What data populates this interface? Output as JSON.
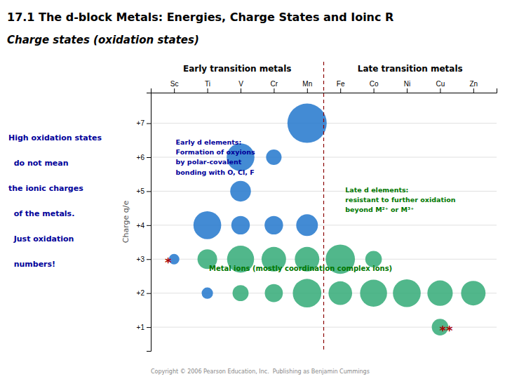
{
  "chart_data": {
    "type": "scatter",
    "title": "17.1 The d-block Metals: Energies, Charge States and Ioinc R",
    "subtitle": [
      "Charge states",
      " (oxidation states)"
    ],
    "ylabel": "Charge q/e",
    "x": [
      5,
      3,
      4,
      3,
      2,
      3,
      4,
      5,
      1,
      2,
      3,
      4,
      5,
      6,
      7,
      2,
      3,
      4,
      5,
      6,
      7,
      8,
      9,
      10,
      9
    ],
    "values": [
      7,
      6,
      6,
      5,
      4,
      4,
      4,
      4,
      3,
      3,
      3,
      3,
      3,
      3,
      3,
      2,
      2,
      2,
      2,
      2,
      2,
      2,
      2,
      2,
      1
    ],
    "sizes": [
      1800,
      900,
      280,
      500,
      900,
      400,
      400,
      550,
      130,
      450,
      850,
      700,
      700,
      1000,
      320,
      150,
      300,
      380,
      950,
      650,
      850,
      900,
      750,
      700,
      320
    ],
    "colors": [
      "#2277cc",
      "#2277cc",
      "#2277cc",
      "#2277cc",
      "#2277cc",
      "#2277cc",
      "#2277cc",
      "#2277cc",
      "#2277cc",
      "#33aa77",
      "#33aa77",
      "#33aa77",
      "#33aa77",
      "#33aa77",
      "#33aa77",
      "#2277cc",
      "#33aa77",
      "#33aa77",
      "#33aa77",
      "#33aa77",
      "#33aa77",
      "#33aa77",
      "#33aa77",
      "#33aa77",
      "#33aa77"
    ],
    "xlim": [
      0.3,
      10.7
    ],
    "xticks": [
      {
        "value": 1,
        "label": "Sc"
      },
      {
        "value": 2,
        "label": "Ti"
      },
      {
        "value": 3,
        "label": "V"
      },
      {
        "value": 4,
        "label": "Cr"
      },
      {
        "value": 5,
        "label": "Mn"
      },
      {
        "value": 6,
        "label": "Fe"
      },
      {
        "value": 7,
        "label": "Co"
      },
      {
        "value": 8,
        "label": "Ni"
      },
      {
        "value": 9,
        "label": "Cu"
      },
      {
        "value": 10,
        "label": "Zn"
      }
    ],
    "ylim": [
      0.3,
      7.9
    ],
    "yticks": [
      {
        "value": 1,
        "label": "+1"
      },
      {
        "value": 2,
        "label": "+2"
      },
      {
        "value": 3,
        "label": "+3"
      },
      {
        "value": 4,
        "label": "+4"
      },
      {
        "value": 5,
        "label": "+5"
      },
      {
        "value": 6,
        "label": "+6"
      },
      {
        "value": 7,
        "label": "+7"
      }
    ],
    "grid": "y",
    "vline": 5.5,
    "headers": [
      "Early transition metals",
      "Late transition metals"
    ],
    "annotations": [
      {
        "text": "Early d elements:\nFormation of oxyions\nby polar-covalent\nbonding with O, Cl, F",
        "x": 1.05,
        "y": 6.55,
        "color": "#000099"
      },
      {
        "text": "Late d elements:\nresistant to further oxidation\nbeyond M²⁺ or M³⁺",
        "x": 6.15,
        "y": 5.15,
        "color": "#007700"
      },
      {
        "text": "Metal ions (mostly coordination complex ions)",
        "x": 2.05,
        "y": 2.62,
        "color": "#007700"
      },
      {
        "text": "*",
        "x": 0.82,
        "y": 3,
        "color": "#aa0000"
      },
      {
        "text": "**",
        "x": 9.18,
        "y": 1,
        "color": "#aa0000"
      }
    ],
    "side_note": {
      "lines": [
        "High oxidation states",
        "  do not mean",
        "the ionic charges",
        "  of the metals.",
        "  Just oxidation",
        "  numbers!"
      ],
      "color": "#000099"
    },
    "caption": "Copyright © 2006 Pearson Education, Inc.  Publishing as Benjamin Cummings"
  }
}
